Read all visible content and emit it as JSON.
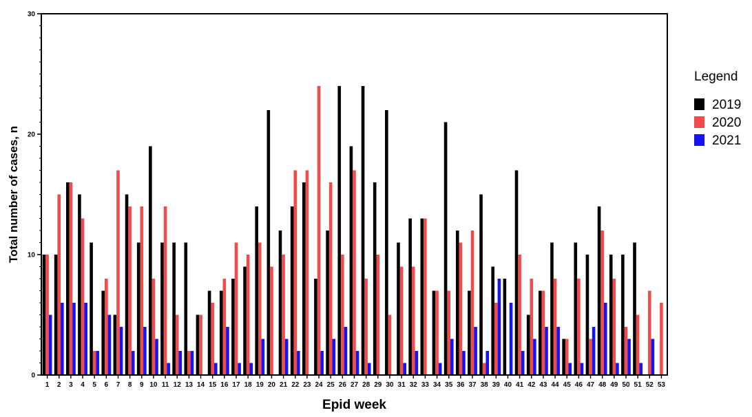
{
  "chart_data": {
    "type": "bar",
    "xlabel": "Epid week",
    "ylabel": "Total number of cases, n",
    "ylim": [
      0,
      30
    ],
    "yticks": [
      0,
      10,
      20,
      30
    ],
    "legend_title": "Legend",
    "legend_position": "right",
    "categories": [
      "1",
      "2",
      "3",
      "4",
      "5",
      "6",
      "7",
      "8",
      "9",
      "10",
      "11",
      "12",
      "13",
      "14",
      "15",
      "16",
      "17",
      "18",
      "19",
      "20",
      "21",
      "22",
      "23",
      "24",
      "25",
      "26",
      "27",
      "28",
      "29",
      "30",
      "31",
      "32",
      "33",
      "34",
      "35",
      "36",
      "37",
      "38",
      "39",
      "40",
      "41",
      "42",
      "43",
      "44",
      "45",
      "46",
      "47",
      "48",
      "49",
      "50",
      "51",
      "52",
      "53"
    ],
    "series": [
      {
        "name": "2019",
        "color": "#000000",
        "values": [
          10,
          10,
          16,
          15,
          11,
          7,
          5,
          15,
          11,
          19,
          11,
          11,
          11,
          5,
          7,
          7,
          8,
          9,
          14,
          22,
          12,
          14,
          16,
          8,
          12,
          24,
          19,
          24,
          16,
          22,
          11,
          13,
          13,
          7,
          21,
          12,
          7,
          15,
          9,
          8,
          17,
          5,
          7,
          11,
          3,
          11,
          10,
          14,
          10,
          10,
          11,
          0,
          0
        ]
      },
      {
        "name": "2020",
        "color": "#f04c4c",
        "values": [
          10,
          15,
          16,
          13,
          2,
          8,
          17,
          14,
          14,
          8,
          14,
          5,
          2,
          5,
          6,
          8,
          11,
          10,
          11,
          9,
          10,
          17,
          17,
          24,
          16,
          10,
          17,
          8,
          10,
          5,
          9,
          9,
          13,
          7,
          7,
          11,
          12,
          1,
          6,
          0,
          10,
          8,
          7,
          8,
          3,
          8,
          3,
          12,
          8,
          4,
          5,
          7,
          6
        ]
      },
      {
        "name": "2021",
        "color": "#1515f0",
        "values": [
          5,
          6,
          6,
          6,
          2,
          5,
          4,
          2,
          4,
          3,
          1,
          2,
          2,
          0,
          1,
          4,
          1,
          1,
          3,
          0,
          3,
          2,
          0,
          2,
          3,
          4,
          2,
          1,
          0,
          0,
          1,
          2,
          0,
          1,
          3,
          2,
          4,
          2,
          8,
          6,
          2,
          3,
          4,
          4,
          1,
          1,
          4,
          6,
          1,
          3,
          1,
          3,
          0
        ]
      }
    ]
  }
}
